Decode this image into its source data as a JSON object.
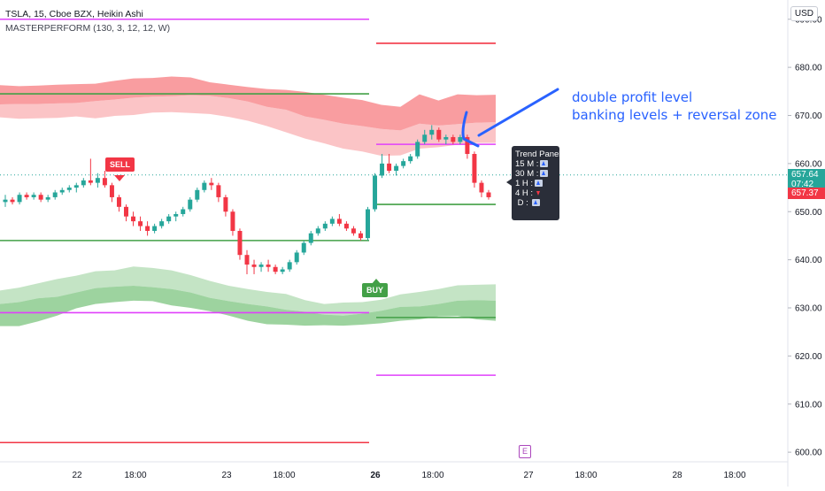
{
  "legend": {
    "symbol_line": "TSLA, 15, Cboe BZX, Heikin Ashi",
    "indicator_line": "MASTERPERFORM (130, 3, 12, 12, W)"
  },
  "currency_button": "USD",
  "current_price": {
    "value": "657.64",
    "countdown": "07:42",
    "color": "#26a69a"
  },
  "prev_price": {
    "value": "657.37",
    "color": "#f23645"
  },
  "annotation": {
    "line1": "double profit level",
    "line2": "banking levels + reversal zone",
    "color": "#2962ff"
  },
  "trend_panel": {
    "title": "Trend Panel",
    "rows": [
      {
        "label": "15 M :",
        "direction": "up"
      },
      {
        "label": "30 M :",
        "direction": "up"
      },
      {
        "label": "1 H :",
        "direction": "up"
      },
      {
        "label": "4 H :",
        "direction": "down"
      },
      {
        "label": "D :",
        "direction": "up"
      }
    ]
  },
  "signals": {
    "sell": "SELL",
    "buy": "BUY"
  },
  "event_marker": "E",
  "chart_data": {
    "type": "candlestick",
    "ylim": [
      598,
      694
    ],
    "y_ticks": [
      690,
      680,
      670,
      660,
      650,
      640,
      630,
      620,
      610,
      600
    ],
    "y_tick_labels": [
      "690.00",
      "680.00",
      "670.00",
      "660.00",
      "650.00",
      "640.00",
      "630.00",
      "620.00",
      "610.00",
      "600.00"
    ],
    "x_tick_labels": [
      "22",
      "18:00",
      "23",
      "18:00",
      "26",
      "18:00",
      "27",
      "18:00",
      "28",
      "18:00"
    ],
    "candles": [
      [
        652,
        653.5,
        651,
        652.5
      ],
      [
        652.5,
        653,
        651.5,
        652
      ],
      [
        652,
        654,
        651.5,
        653.5
      ],
      [
        653.5,
        654,
        652.5,
        653
      ],
      [
        653,
        654,
        652.5,
        653.5
      ],
      [
        653.5,
        654,
        652,
        652.5
      ],
      [
        652.5,
        653.5,
        652,
        653
      ],
      [
        653,
        654.5,
        652.5,
        654
      ],
      [
        654,
        655,
        653.5,
        654.5
      ],
      [
        654.5,
        655.5,
        654,
        655
      ],
      [
        655,
        656,
        654,
        655.5
      ],
      [
        655.5,
        657,
        655,
        656.5
      ],
      [
        656.5,
        661,
        655.5,
        656
      ],
      [
        656,
        658,
        655,
        657
      ],
      [
        657,
        658.5,
        655,
        655.5
      ],
      [
        655.5,
        656,
        652,
        653
      ],
      [
        653,
        653.5,
        650,
        651
      ],
      [
        651,
        651.5,
        648,
        649
      ],
      [
        649,
        650,
        647,
        648
      ],
      [
        648,
        649,
        646,
        647
      ],
      [
        647,
        648,
        645,
        646
      ],
      [
        646,
        647.5,
        645.5,
        647
      ],
      [
        647,
        648.5,
        646.5,
        648
      ],
      [
        648,
        649.5,
        647.5,
        649
      ],
      [
        649,
        650,
        648,
        649.5
      ],
      [
        649.5,
        651,
        649,
        650.5
      ],
      [
        650.5,
        653,
        650,
        652.5
      ],
      [
        652.5,
        655,
        652,
        654.5
      ],
      [
        654.5,
        656.5,
        654,
        656
      ],
      [
        656,
        657,
        654.5,
        655.5
      ],
      [
        655.5,
        656,
        652,
        653
      ],
      [
        653,
        653.5,
        649,
        650
      ],
      [
        650,
        650.5,
        645,
        646
      ],
      [
        646,
        646.5,
        640,
        641
      ],
      [
        641,
        642,
        637,
        639
      ],
      [
        639,
        640,
        637,
        638.5
      ],
      [
        638.5,
        639.5,
        637.5,
        639
      ],
      [
        639,
        640,
        637.5,
        638.5
      ],
      [
        638.5,
        639,
        637,
        637.5
      ],
      [
        637.5,
        638.5,
        637,
        638
      ],
      [
        638,
        640,
        637.5,
        639.5
      ],
      [
        639.5,
        642,
        639,
        641.5
      ],
      [
        641.5,
        644,
        641,
        643.5
      ],
      [
        643.5,
        646,
        643,
        645.5
      ],
      [
        645.5,
        647,
        645,
        646.5
      ],
      [
        646.5,
        648,
        646,
        647.5
      ],
      [
        647.5,
        649,
        647,
        648.5
      ],
      [
        648.5,
        649.5,
        647,
        647.5
      ],
      [
        647.5,
        648,
        646,
        646.5
      ],
      [
        646.5,
        647,
        645,
        645.5
      ],
      [
        645.5,
        646,
        644,
        644.5
      ],
      [
        644.5,
        651,
        644,
        650.5
      ],
      [
        650.5,
        658,
        650,
        657.5
      ],
      [
        657.5,
        662,
        657,
        660
      ],
      [
        660,
        662,
        658,
        658.5
      ],
      [
        658.5,
        660,
        657.5,
        659.5
      ],
      [
        659.5,
        661,
        659,
        660.5
      ],
      [
        660.5,
        662,
        660,
        661.5
      ],
      [
        661.5,
        665,
        661,
        664.5
      ],
      [
        664.5,
        667,
        664,
        666
      ],
      [
        666,
        668,
        665,
        667
      ],
      [
        667,
        667.5,
        664.5,
        665
      ],
      [
        665,
        666,
        664,
        665.5
      ],
      [
        665.5,
        666,
        664,
        664.5
      ],
      [
        664.5,
        666,
        664,
        665.5
      ],
      [
        665.5,
        666,
        661,
        662
      ],
      [
        662,
        662.5,
        655,
        656
      ],
      [
        656,
        656.5,
        653,
        654
      ],
      [
        654,
        654.5,
        652.5,
        653
      ]
    ],
    "upper_band": {
      "outer": [
        676.3,
        676.1,
        676.2,
        676.4,
        676.5,
        676.6,
        677.2,
        677.7,
        677.8,
        678.1,
        677.9,
        676.9,
        676.4,
        675.9,
        675.5,
        675.3,
        674.9,
        674.3,
        673.7,
        673.2,
        672.2,
        671.8,
        674.4,
        673.1,
        674.4,
        674.2,
        674.3
      ],
      "inner": [
        672.3,
        672.4,
        672.4,
        672.5,
        672.6,
        673,
        673.3,
        673.7,
        673.9,
        674,
        674.2,
        674.1,
        673.6,
        672.9,
        671.8,
        671.2,
        669.8,
        669.1,
        668.3,
        667.8,
        667.2,
        666.9,
        668.3,
        667.9,
        668.2,
        668.5,
        668.6
      ],
      "lower": [
        669.6,
        669.3,
        669.4,
        669.5,
        669.8,
        669.4,
        669.9,
        670.1,
        670.6,
        670.7,
        670.5,
        670.3,
        669.7,
        668.9,
        667.8,
        666.5,
        665.2,
        664.2,
        663.1,
        662.5,
        661.6,
        661.7,
        663.1,
        663.4,
        663.9,
        664.3,
        664.3
      ]
    },
    "lower_band": {
      "upper": [
        633.6,
        634.2,
        635.1,
        636,
        636.7,
        637.6,
        637.8,
        638.6,
        638.3,
        637.8,
        636.8,
        635.6,
        634.6,
        633.9,
        633.3,
        632.9,
        631.6,
        630.8,
        631.1,
        631.2,
        631.7,
        632.8,
        633.3,
        633.9,
        634.7,
        634.8,
        634.9
      ],
      "inner": [
        630.8,
        631.2,
        632,
        632.3,
        633.2,
        634.1,
        634.4,
        634.6,
        634.3,
        633.9,
        633.2,
        632.1,
        631.4,
        630.8,
        630.3,
        629.6,
        629.2,
        628.6,
        628.4,
        628.8,
        629.4,
        630.2,
        630.3,
        630.8,
        631.5,
        631.6,
        631.5
      ],
      "lower": [
        626.2,
        626.2,
        627.2,
        628.4,
        629.9,
        630.8,
        631.2,
        631.5,
        631.4,
        630.5,
        630,
        629.3,
        628.4,
        627.3,
        626.6,
        626.5,
        626.3,
        626.4,
        626.3,
        626.5,
        626.8,
        627.3,
        627.6,
        628.2,
        628.3,
        627.6,
        627.3
      ]
    },
    "levels": [
      {
        "name": "upper-purple-left",
        "y": 690,
        "x": [
          0,
          417
        ],
        "color": "#e040fb"
      },
      {
        "name": "upper-green-left",
        "y": 674.5,
        "x": [
          0,
          417
        ],
        "color": "#43a047"
      },
      {
        "name": "mid-green-left",
        "y": 644,
        "x": [
          0,
          417
        ],
        "color": "#43a047"
      },
      {
        "name": "lower-purple-left",
        "y": 629,
        "x": [
          0,
          417
        ],
        "color": "#e040fb"
      },
      {
        "name": "lower-red-left",
        "y": 602,
        "x": [
          0,
          417
        ],
        "color": "#f23645"
      },
      {
        "name": "upper-red-right",
        "y": 685,
        "x": [
          425,
          560
        ],
        "color": "#f23645"
      },
      {
        "name": "mid-purple-right",
        "y": 664,
        "x": [
          425,
          560
        ],
        "color": "#e040fb"
      },
      {
        "name": "mid-green-right",
        "y": 651.5,
        "x": [
          425,
          560
        ],
        "color": "#43a047"
      },
      {
        "name": "lower-green-right",
        "y": 628,
        "x": [
          425,
          560
        ],
        "color": "#43a047"
      },
      {
        "name": "lower-purple-right",
        "y": 616,
        "x": [
          425,
          560
        ],
        "color": "#e040fb"
      }
    ],
    "colors": {
      "up": "#26a69a",
      "down": "#f23645",
      "upper_fill": "#f77c80",
      "lower_fill": "#7cc47f"
    }
  }
}
